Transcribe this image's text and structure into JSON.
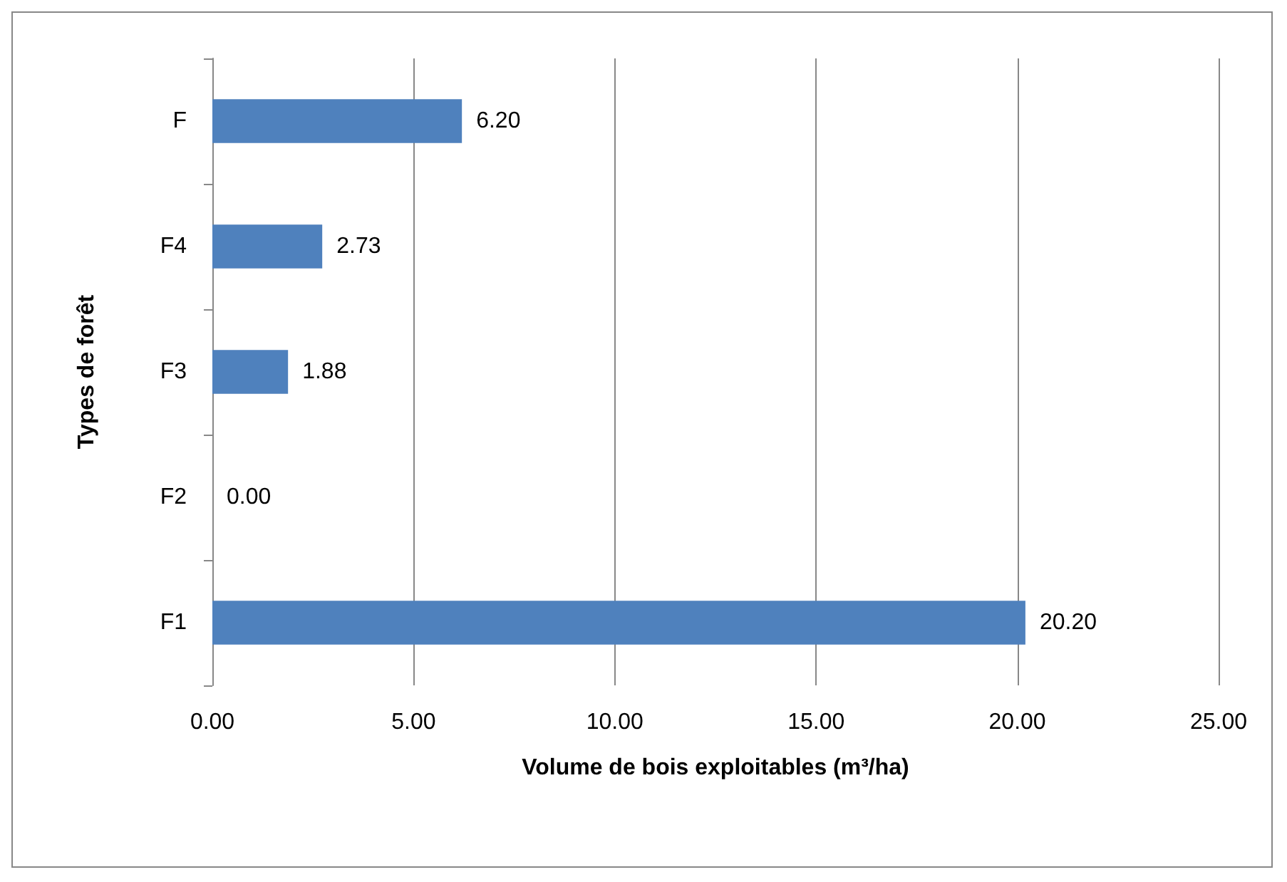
{
  "chart_data": {
    "type": "bar",
    "orientation": "horizontal",
    "xlabel": "Volume de bois exploitables (m³/ha)",
    "ylabel": "Types de forêt",
    "categories": [
      "F",
      "F4",
      "F3",
      "F2",
      "F1"
    ],
    "values": [
      6.2,
      2.73,
      1.88,
      0.0,
      20.2
    ],
    "value_labels": [
      "6.20",
      "2.73",
      "1.88",
      "0.00",
      "20.20"
    ],
    "color": "#4f81bd",
    "xlim": [
      0,
      25
    ],
    "xticks": [
      {
        "value": 0,
        "label": "0.00"
      },
      {
        "value": 5,
        "label": "5.00"
      },
      {
        "value": 10,
        "label": "10.00"
      },
      {
        "value": 15,
        "label": "15.00"
      },
      {
        "value": 20,
        "label": "20.00"
      },
      {
        "value": 25,
        "label": "25.00"
      }
    ],
    "grid": "x"
  }
}
